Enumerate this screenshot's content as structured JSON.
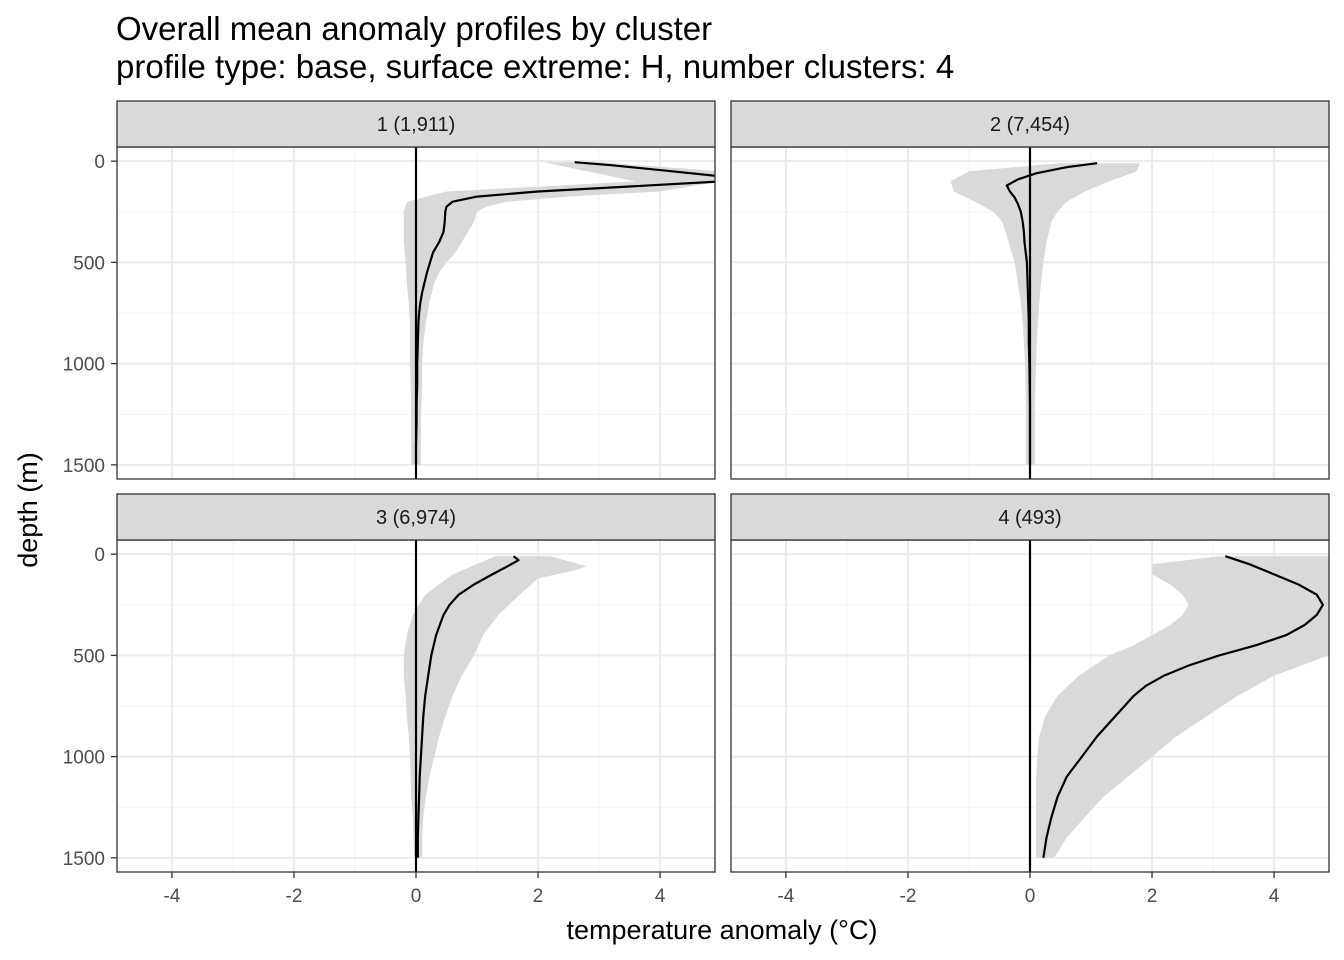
{
  "chart_data": {
    "type": "line",
    "title": "Overall mean anomaly profiles by cluster",
    "subtitle": "profile type: base, surface extreme: H, number clusters: 4",
    "xlabel": "temperature anomaly (°C)",
    "ylabel": "depth (m)",
    "xlim": [
      -4.9,
      4.9
    ],
    "ylim": [
      1570,
      -70
    ],
    "y_reversed": true,
    "x_ticks": [
      -4,
      -2,
      0,
      2,
      4
    ],
    "x_tick_labels": [
      "-4",
      "-2",
      "0",
      "2",
      "4"
    ],
    "y_ticks": [
      0,
      500,
      1000,
      1500
    ],
    "y_tick_labels": [
      "0",
      "500",
      "1000",
      "1500"
    ],
    "grid": true,
    "reference_line_x": 0,
    "line_color": "#000000",
    "ribbon_color": "#d9d9d9",
    "strip_color": "#d9d9d9",
    "panels": [
      {
        "strip_label": "1 (1,911)",
        "mean": {
          "depth": [
            5,
            20,
            50,
            75,
            100,
            125,
            150,
            175,
            200,
            225,
            250,
            300,
            350,
            400,
            450,
            500,
            550,
            600,
            650,
            700,
            750,
            800,
            900,
            1000,
            1100,
            1200,
            1300,
            1400,
            1500
          ],
          "value": [
            2.6,
            3.2,
            4.2,
            5.0,
            5.0,
            3.5,
            2.0,
            1.0,
            0.6,
            0.5,
            0.48,
            0.47,
            0.45,
            0.38,
            0.28,
            0.23,
            0.18,
            0.14,
            0.1,
            0.07,
            0.05,
            0.04,
            0.03,
            0.02,
            0.02,
            0.01,
            0.01,
            0.0,
            0.0
          ]
        },
        "band_low": {
          "depth": [
            5,
            50,
            100,
            150,
            200,
            250,
            300,
            400,
            500,
            600,
            700,
            800,
            900,
            1000,
            1100,
            1200,
            1300,
            1400,
            1500
          ],
          "value": [
            2.1,
            2.8,
            3.6,
            0.5,
            -0.15,
            -0.2,
            -0.2,
            -0.2,
            -0.17,
            -0.15,
            -0.12,
            -0.1,
            -0.1,
            -0.1,
            -0.09,
            -0.08,
            -0.08,
            -0.08,
            -0.08
          ]
        },
        "band_high": {
          "depth": [
            5,
            50,
            100,
            150,
            175,
            200,
            225,
            250,
            300,
            350,
            400,
            450,
            500,
            550,
            600,
            700,
            800,
            900,
            1000,
            1100,
            1200,
            1300,
            1400,
            1500
          ],
          "value": [
            3.0,
            5.0,
            5.0,
            4.0,
            2.5,
            1.5,
            1.15,
            1.0,
            0.95,
            0.85,
            0.75,
            0.65,
            0.5,
            0.38,
            0.3,
            0.22,
            0.16,
            0.12,
            0.1,
            0.1,
            0.09,
            0.08,
            0.08,
            0.08
          ]
        }
      },
      {
        "strip_label": "2 (7,454)",
        "mean": {
          "depth": [
            10,
            30,
            60,
            90,
            120,
            150,
            180,
            210,
            250,
            300,
            350,
            400,
            450,
            500,
            600,
            700,
            800,
            900,
            1000,
            1200,
            1400,
            1500
          ],
          "value": [
            1.1,
            0.6,
            0.1,
            -0.2,
            -0.38,
            -0.33,
            -0.25,
            -0.2,
            -0.15,
            -0.12,
            -0.1,
            -0.09,
            -0.07,
            -0.05,
            -0.04,
            -0.03,
            -0.02,
            -0.02,
            -0.01,
            0.0,
            0.0,
            0.0
          ]
        },
        "band_low": {
          "depth": [
            10,
            50,
            100,
            150,
            200,
            250,
            300,
            400,
            500,
            600,
            700,
            800,
            900,
            1000,
            1200,
            1400,
            1500
          ],
          "value": [
            0.5,
            -1.0,
            -1.3,
            -1.25,
            -0.9,
            -0.6,
            -0.45,
            -0.35,
            -0.25,
            -0.2,
            -0.15,
            -0.12,
            -0.1,
            -0.08,
            -0.07,
            -0.07,
            -0.07
          ]
        },
        "band_high": {
          "depth": [
            10,
            50,
            100,
            150,
            200,
            250,
            300,
            400,
            500,
            600,
            700,
            800,
            900,
            1000,
            1200,
            1400,
            1500
          ],
          "value": [
            1.8,
            1.75,
            1.3,
            0.9,
            0.6,
            0.45,
            0.35,
            0.27,
            0.22,
            0.18,
            0.15,
            0.13,
            0.11,
            0.1,
            0.08,
            0.08,
            0.08
          ]
        }
      },
      {
        "strip_label": "3 (6,974)",
        "mean": {
          "depth": [
            10,
            30,
            60,
            100,
            150,
            200,
            250,
            300,
            400,
            500,
            600,
            700,
            800,
            900,
            1000,
            1100,
            1200,
            1300,
            1400,
            1500
          ],
          "value": [
            1.6,
            1.68,
            1.5,
            1.25,
            0.95,
            0.7,
            0.55,
            0.45,
            0.33,
            0.25,
            0.2,
            0.15,
            0.12,
            0.1,
            0.08,
            0.06,
            0.05,
            0.04,
            0.03,
            0.03
          ]
        },
        "band_low": {
          "depth": [
            10,
            100,
            200,
            300,
            400,
            500,
            600,
            700,
            800,
            900,
            1000,
            1100,
            1200,
            1300,
            1400,
            1500
          ],
          "value": [
            1.3,
            0.6,
            0.15,
            -0.05,
            -0.15,
            -0.2,
            -0.2,
            -0.17,
            -0.15,
            -0.12,
            -0.1,
            -0.09,
            -0.08,
            -0.05,
            -0.04,
            -0.03
          ]
        },
        "band_high": {
          "depth": [
            10,
            60,
            80,
            120,
            200,
            300,
            400,
            500,
            600,
            700,
            800,
            900,
            1000,
            1100,
            1200,
            1300,
            1400,
            1500
          ],
          "value": [
            2.2,
            2.8,
            2.6,
            2.0,
            1.7,
            1.35,
            1.1,
            0.95,
            0.75,
            0.6,
            0.48,
            0.38,
            0.3,
            0.22,
            0.16,
            0.12,
            0.1,
            0.1
          ]
        }
      },
      {
        "strip_label": "4 (493)",
        "mean": {
          "depth": [
            10,
            50,
            100,
            150,
            200,
            250,
            300,
            350,
            400,
            450,
            500,
            550,
            600,
            650,
            700,
            800,
            900,
            1000,
            1100,
            1200,
            1300,
            1400,
            1500
          ],
          "value": [
            3.2,
            3.6,
            4.0,
            4.4,
            4.7,
            4.8,
            4.7,
            4.5,
            4.2,
            3.7,
            3.1,
            2.6,
            2.2,
            1.9,
            1.7,
            1.4,
            1.1,
            0.85,
            0.6,
            0.45,
            0.35,
            0.27,
            0.22
          ]
        },
        "band_low": {
          "depth": [
            10,
            50,
            100,
            150,
            200,
            250,
            300,
            350,
            400,
            450,
            500,
            600,
            700,
            800,
            900,
            1000,
            1100,
            1200,
            1300,
            1400,
            1500
          ],
          "value": [
            3.1,
            2.0,
            2.0,
            2.3,
            2.5,
            2.6,
            2.5,
            2.3,
            2.0,
            1.7,
            1.3,
            0.8,
            0.45,
            0.25,
            0.15,
            0.12,
            0.1,
            0.1,
            0.1,
            0.1,
            0.1
          ]
        },
        "band_high": {
          "depth": [
            10,
            100,
            200,
            300,
            400,
            450,
            500,
            600,
            700,
            800,
            900,
            1000,
            1100,
            1200,
            1300,
            1400,
            1500
          ],
          "value": [
            5.0,
            5.0,
            5.0,
            5.0,
            5.0,
            5.0,
            4.9,
            4.0,
            3.4,
            2.9,
            2.4,
            2.0,
            1.6,
            1.2,
            0.9,
            0.6,
            0.4
          ]
        }
      }
    ]
  }
}
